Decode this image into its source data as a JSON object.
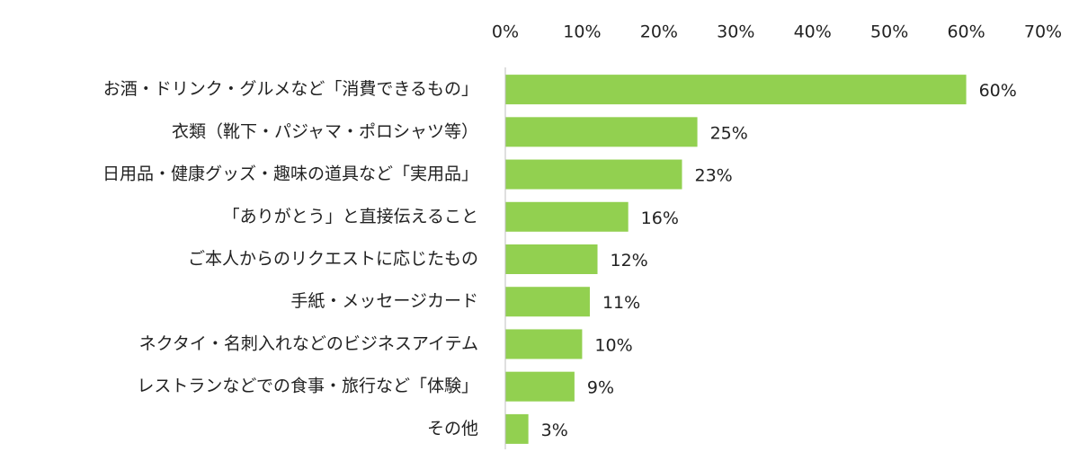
{
  "chart_data": {
    "type": "bar",
    "horizontal": true,
    "categories": [
      "お酒・ドリンク・グルメなど「消費できるもの」",
      "衣類（靴下・パジャマ・ポロシャツ等）",
      "日用品・健康グッズ・趣味の道具など「実用品」",
      "「ありがとう」と直接伝えること",
      "ご本人からのリクエストに応じたもの",
      "手紙・メッセージカード",
      "ネクタイ・名刺入れなどのビジネスアイテム",
      "レストランなどでの食事・旅行など「体験」",
      "その他"
    ],
    "values": [
      60,
      25,
      23,
      16,
      12,
      11,
      10,
      9,
      3
    ],
    "value_labels": [
      "60%",
      "25%",
      "23%",
      "16%",
      "12%",
      "11%",
      "10%",
      "9%",
      "3%"
    ],
    "color": "#92d050",
    "xlim": [
      0,
      70
    ],
    "xticks": [
      {
        "value": 0,
        "label": "0%"
      },
      {
        "value": 10,
        "label": "10%"
      },
      {
        "value": 20,
        "label": "20%"
      },
      {
        "value": 30,
        "label": "30%"
      },
      {
        "value": 40,
        "label": "40%"
      },
      {
        "value": 50,
        "label": "50%"
      },
      {
        "value": 60,
        "label": "60%"
      },
      {
        "value": 70,
        "label": "70%"
      }
    ],
    "grid": false
  }
}
